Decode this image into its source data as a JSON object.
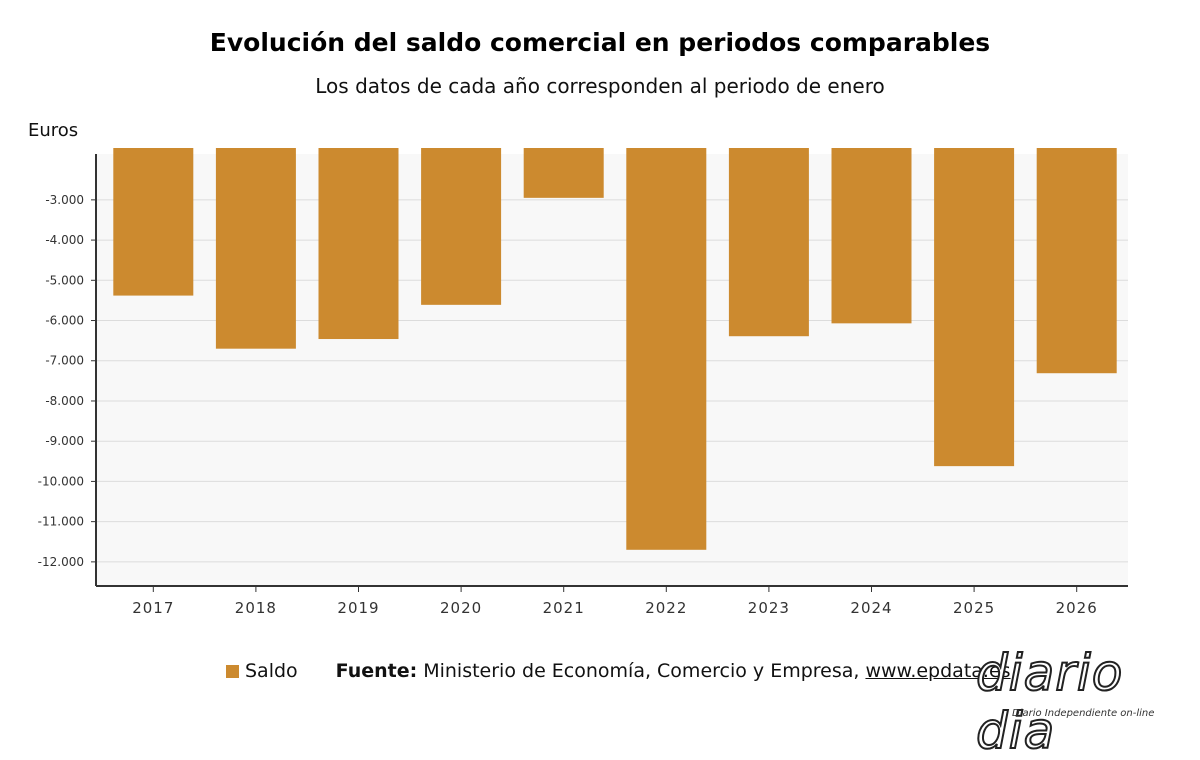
{
  "header": {
    "title": "Evolución del saldo comercial en periodos comparables",
    "subtitle": "Los datos de cada año corresponden al periodo de enero"
  },
  "legend": {
    "label": "Saldo",
    "source_key": "Fuente:",
    "source_text": "Ministerio de Economía, Comercio y Empresa,",
    "source_url": "www.epdata.es"
  },
  "logo": {
    "text": "diario dia",
    "tagline": "Diario Independiente on-line"
  },
  "colors": {
    "bar": "#cc8a2f",
    "plot_bg": "#f8f8f8",
    "grid": "#dcdcdc",
    "axis": "#333333"
  },
  "chart_data": {
    "type": "bar",
    "title": "Evolución del saldo comercial en periodos comparables",
    "subtitle": "Los datos de cada año corresponden al periodo de enero",
    "xlabel": "",
    "ylabel": "Euros",
    "categories": [
      "2017",
      "2018",
      "2019",
      "2020",
      "2021",
      "2022",
      "2023",
      "2024",
      "2025",
      "2026"
    ],
    "series": [
      {
        "name": "Saldo",
        "values": [
          -5380,
          -6700,
          -6460,
          -5610,
          -2950,
          -11700,
          -6390,
          -6070,
          -9620,
          -7310
        ]
      }
    ],
    "ylim": [
      -12600,
      -1860
    ],
    "yticks": [
      -3000,
      -4000,
      -5000,
      -6000,
      -7000,
      -8000,
      -9000,
      -10000,
      -11000,
      -12000
    ],
    "ytick_labels": [
      "-3.000",
      "-4.000",
      "-5.000",
      "-6.000",
      "-7.000",
      "-8.000",
      "-9.000",
      "-10.000",
      "-11.000",
      "-12.000"
    ],
    "grid": true,
    "legend": "bottom-left"
  }
}
